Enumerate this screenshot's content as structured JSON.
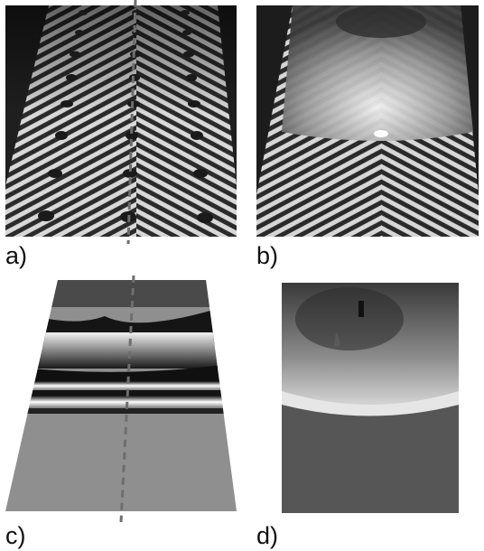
{
  "figure": {
    "panels": [
      {
        "id": "a",
        "label": "a)"
      },
      {
        "id": "b",
        "label": "b)"
      },
      {
        "id": "c",
        "label": "c)"
      },
      {
        "id": "d",
        "label": "d)"
      }
    ]
  },
  "colors": {
    "background": "#ffffff",
    "dashed_line": "#6e6e6e",
    "dark": "#1e1e1e",
    "stripe_light": "#d9d9d9",
    "stripe_dark": "#2a2a2a",
    "flat_gray": "#8f8f8f"
  }
}
